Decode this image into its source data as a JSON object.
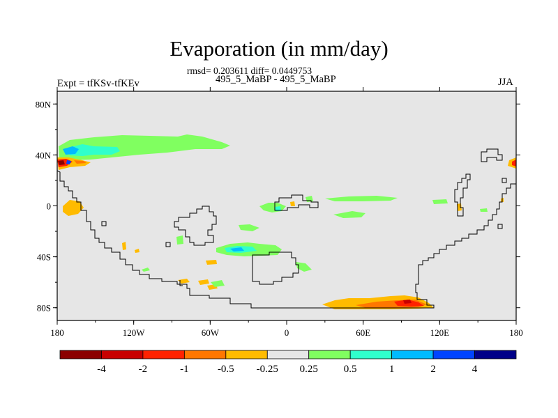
{
  "title": "Evaporation (in mm/day)",
  "stats_line": "rmsd= 0.203611 diff= 0.0449753",
  "cases_line": "495_5_MaBP - 495_5_MaBP",
  "experiment_label": "Expt = tfKSv-tfKEv",
  "season_label": "JJA",
  "map": {
    "projection": "cylindrical-equidistant",
    "lon_range": [
      -180,
      180
    ],
    "lat_range": [
      -90,
      90
    ],
    "background_color": "#e6e6e6",
    "coastline_color": "#000000"
  },
  "axes": {
    "x_ticks": [
      {
        "value": -180,
        "label": "180"
      },
      {
        "value": -120,
        "label": "120W"
      },
      {
        "value": -60,
        "label": "60W"
      },
      {
        "value": 0,
        "label": "0"
      },
      {
        "value": 60,
        "label": "60E"
      },
      {
        "value": 120,
        "label": "120E"
      },
      {
        "value": 180,
        "label": "180"
      }
    ],
    "y_ticks": [
      {
        "value": 80,
        "label": "80N"
      },
      {
        "value": 40,
        "label": "40N"
      },
      {
        "value": 0,
        "label": "0"
      },
      {
        "value": -40,
        "label": "40S"
      },
      {
        "value": -80,
        "label": "80S"
      }
    ]
  },
  "colorbar": {
    "colors": [
      "#8b0000",
      "#c80000",
      "#ff2200",
      "#ff7700",
      "#ffbb00",
      "#e6e6e6",
      "#80ff60",
      "#30ffcc",
      "#00bbff",
      "#0044ff",
      "#000088"
    ],
    "labels": [
      "-4",
      "-2",
      "-1",
      "-0.5",
      "-0.25",
      "0.25",
      "0.5",
      "1",
      "2",
      "4"
    ]
  },
  "chart_data": {
    "type": "heatmap",
    "title": "Evaporation (in mm/day)",
    "units": "mm/day",
    "xlim": [
      -180,
      180
    ],
    "ylim": [
      -90,
      90
    ],
    "contour_levels": [
      -4,
      -2,
      -1,
      -0.5,
      -0.25,
      0.25,
      0.5,
      1,
      2,
      4
    ],
    "features": [
      {
        "region": "North Pacific band 35N-55N, 180-100W",
        "value_range": [
          0.25,
          1
        ],
        "sign": "positive"
      },
      {
        "region": "Northwest Pacific near 33N 178W",
        "value_range": [
          -4,
          2
        ],
        "sign": "mixed"
      },
      {
        "region": "Equatorial East Pacific near 0N 170W",
        "value_range": [
          -0.5,
          -0.25
        ],
        "sign": "negative"
      },
      {
        "region": "Southern Ocean Atlantic-Indian sector 75S-80S, 25E-115E",
        "value_range": [
          -2,
          -0.25
        ],
        "sign": "negative"
      },
      {
        "region": "South Atlantic near 35S-42S, 40W-0",
        "value_range": [
          0.25,
          1
        ],
        "sign": "positive"
      },
      {
        "region": "Tropical Atlantic near 0N",
        "value_range": [
          0.25,
          1
        ],
        "sign": "positive"
      },
      {
        "region": "Tropical Indian Ocean near 5N, 30E-90E",
        "value_range": [
          0.25,
          0.5
        ],
        "sign": "positive"
      },
      {
        "region": "Far West Pacific edge near 33N 180E",
        "value_range": [
          -2,
          -0.25
        ],
        "sign": "negative"
      }
    ]
  }
}
